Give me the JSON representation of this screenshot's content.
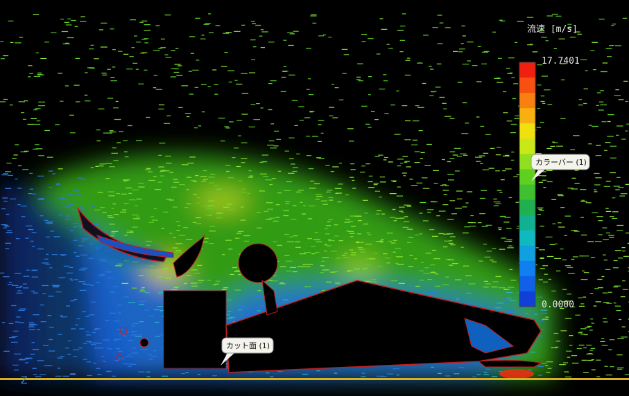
{
  "legend": {
    "title": "流速 [m/s]",
    "max_label": "17.7401",
    "min_label": "0.0000"
  },
  "callouts": [
    {
      "text": "カラーバー (1)"
    },
    {
      "text": "カット面 (1)"
    }
  ],
  "axis_label": "Z"
}
